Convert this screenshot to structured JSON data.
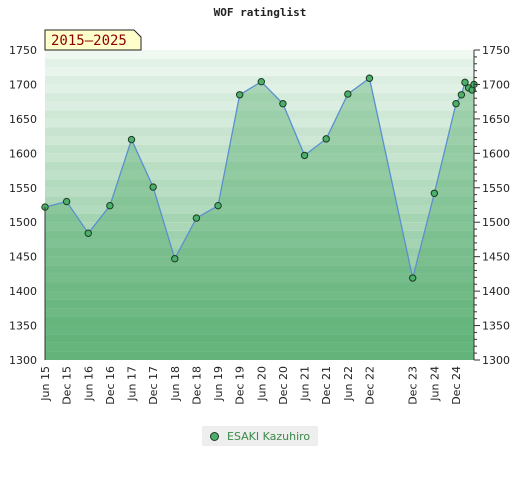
{
  "chart_data": {
    "type": "area",
    "title": "WOF ratinglist",
    "period_label": "2015–2025",
    "ylim": [
      1300,
      1750
    ],
    "yticks": [
      1300,
      1350,
      1400,
      1450,
      1500,
      1550,
      1600,
      1650,
      1700,
      1750
    ],
    "xticks": [
      {
        "label": "Jun 15",
        "x": 0
      },
      {
        "label": "Dec 15",
        "x": 6
      },
      {
        "label": "Jun 16",
        "x": 12
      },
      {
        "label": "Dec 16",
        "x": 18
      },
      {
        "label": "Jun 17",
        "x": 24
      },
      {
        "label": "Dec 17",
        "x": 30
      },
      {
        "label": "Jun 18",
        "x": 36
      },
      {
        "label": "Dec 18",
        "x": 42
      },
      {
        "label": "Jun 19",
        "x": 48
      },
      {
        "label": "Dec 19",
        "x": 54
      },
      {
        "label": "Jun 20",
        "x": 60
      },
      {
        "label": "Dec 20",
        "x": 66
      },
      {
        "label": "Jun 21",
        "x": 72
      },
      {
        "label": "Dec 21",
        "x": 78
      },
      {
        "label": "Jun 22",
        "x": 84
      },
      {
        "label": "Dec 22",
        "x": 90
      },
      {
        "label": "Dec 23",
        "x": 102
      },
      {
        "label": "Jun 24",
        "x": 108
      },
      {
        "label": "Dec 24",
        "x": 114
      }
    ],
    "xlim": [
      0,
      119
    ],
    "series": [
      {
        "name": "ESAKI Kazuhiro",
        "color": "#4caf6a",
        "points": [
          {
            "x": 0,
            "y": 1522
          },
          {
            "x": 6,
            "y": 1530
          },
          {
            "x": 12,
            "y": 1484
          },
          {
            "x": 18,
            "y": 1524
          },
          {
            "x": 24,
            "y": 1620
          },
          {
            "x": 30,
            "y": 1551
          },
          {
            "x": 36,
            "y": 1447
          },
          {
            "x": 42,
            "y": 1506
          },
          {
            "x": 48,
            "y": 1524
          },
          {
            "x": 54,
            "y": 1685
          },
          {
            "x": 60,
            "y": 1704
          },
          {
            "x": 66,
            "y": 1672
          },
          {
            "x": 72,
            "y": 1597
          },
          {
            "x": 78,
            "y": 1621
          },
          {
            "x": 84,
            "y": 1686
          },
          {
            "x": 90,
            "y": 1709
          },
          {
            "x": 102,
            "y": 1419
          },
          {
            "x": 108,
            "y": 1542
          },
          {
            "x": 114,
            "y": 1672
          },
          {
            "x": 115.5,
            "y": 1685
          },
          {
            "x": 116.5,
            "y": 1703
          },
          {
            "x": 117.5,
            "y": 1695
          },
          {
            "x": 118.5,
            "y": 1692
          },
          {
            "x": 119,
            "y": 1700
          }
        ]
      }
    ],
    "grid": true,
    "legend_position": "bottom-center"
  }
}
